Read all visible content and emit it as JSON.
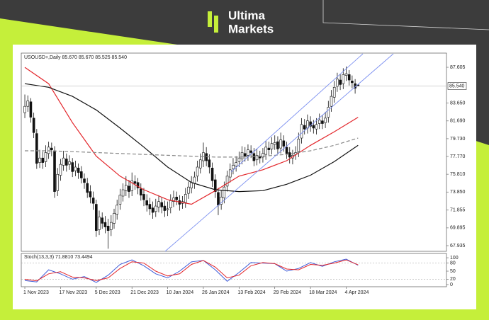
{
  "logo": {
    "line1": "Ultima",
    "line2": "Markets"
  },
  "chart_data": {
    "type": "candlestick",
    "title": "USOUSD+,Daily 85.670 85.670 85.525 85.540",
    "open": [
      82.6,
      83.3,
      83.8,
      82.0,
      80.3,
      77.1,
      77.6,
      77.2,
      78.1,
      78.7,
      78.4,
      74.0,
      75.7,
      76.8,
      77.5,
      76.9,
      77.1,
      76.2,
      76.5,
      76.1,
      75.3,
      74.8,
      73.9,
      73.2,
      72.5,
      69.7,
      71.0,
      70.5,
      70.1,
      69.7,
      70.4,
      71.4,
      72.5,
      73.4,
      74.0,
      74.5,
      74.0,
      75.0,
      74.9,
      74.2,
      73.6,
      72.9,
      72.5,
      72.1,
      71.7,
      72.2,
      72.7,
      72.3,
      71.9,
      72.1,
      72.8,
      73.3,
      72.9,
      72.6,
      72.7,
      73.7,
      74.3,
      74.8,
      75.6,
      76.5,
      77.3,
      78.1,
      77.4,
      76.5,
      75.2,
      73.8,
      72.5,
      73.2,
      74.5,
      75.5,
      76.4,
      76.7,
      77.2,
      77.5,
      78.1,
      77.9,
      78.4,
      78.1,
      77.4,
      77.8,
      77.7,
      78.0,
      78.7,
      78.6,
      79.1,
      79.4,
      78.7,
      79.5,
      78.8,
      78.2,
      77.6,
      78.0,
      78.3,
      79.8,
      81.2,
      80.9,
      81.6,
      81.2,
      80.8,
      81.4,
      81.7,
      81.5,
      82.1,
      83.3,
      84.3,
      85.5,
      86.2,
      85.8,
      86.7,
      86.8,
      86.1,
      85.8,
      85.67
    ],
    "high": [
      84.6,
      84.5,
      84.2,
      82.6,
      80.8,
      78.5,
      78.3,
      79.0,
      79.4,
      79.3,
      78.9,
      76.5,
      77.5,
      78.4,
      78.1,
      77.9,
      77.6,
      77.3,
      77.0,
      76.7,
      75.9,
      75.4,
      74.6,
      73.9,
      73.0,
      71.8,
      71.6,
      71.2,
      70.9,
      71.3,
      72.0,
      73.0,
      74.2,
      74.8,
      75.6,
      75.2,
      76.0,
      75.7,
      75.4,
      74.8,
      74.3,
      73.6,
      73.2,
      72.8,
      73.1,
      73.5,
      73.3,
      72.9,
      72.8,
      73.6,
      74.0,
      73.9,
      73.5,
      73.4,
      74.3,
      75.0,
      75.6,
      76.1,
      77.3,
      78.1,
      79.3,
      78.8,
      78.0,
      77.1,
      75.8,
      74.3,
      74.0,
      75.0,
      76.2,
      77.0,
      77.6,
      77.8,
      78.3,
      78.9,
      78.8,
      79.1,
      79.0,
      78.7,
      78.6,
      78.4,
      78.7,
      79.5,
      79.4,
      79.9,
      80.1,
      80.0,
      80.4,
      80.1,
      79.4,
      78.8,
      78.5,
      78.9,
      80.4,
      82.0,
      81.9,
      82.4,
      82.2,
      81.8,
      82.0,
      82.5,
      82.3,
      82.7,
      83.9,
      85.1,
      86.1,
      87.0,
      86.9,
      87.5,
      87.7,
      87.3,
      86.7,
      86.3,
      85.67
    ],
    "low": [
      82.0,
      82.7,
      81.5,
      79.8,
      76.4,
      76.5,
      76.4,
      76.6,
      77.5,
      77.8,
      73.2,
      73.4,
      75.1,
      76.2,
      76.1,
      76.3,
      75.5,
      75.6,
      75.3,
      74.8,
      74.2,
      73.2,
      72.6,
      71.9,
      68.9,
      69.1,
      69.8,
      69.3,
      67.6,
      69.0,
      69.8,
      70.8,
      71.9,
      72.8,
      73.4,
      73.2,
      73.4,
      74.1,
      73.6,
      72.9,
      72.3,
      71.7,
      71.3,
      70.9,
      71.1,
      71.6,
      71.5,
      71.1,
      71.2,
      71.5,
      72.2,
      72.4,
      71.8,
      72.0,
      72.1,
      73.1,
      73.7,
      74.2,
      75.0,
      75.9,
      76.6,
      76.7,
      75.9,
      74.4,
      73.2,
      71.3,
      71.9,
      72.6,
      73.9,
      74.9,
      75.8,
      76.1,
      76.6,
      76.9,
      77.2,
      77.3,
      77.6,
      76.7,
      76.8,
      77.0,
      77.1,
      77.4,
      77.9,
      78.0,
      78.5,
      78.0,
      78.1,
      78.3,
      77.5,
      77.0,
      76.9,
      77.4,
      77.7,
      79.2,
      80.2,
      80.3,
      80.5,
      80.3,
      80.2,
      80.8,
      80.8,
      80.9,
      81.5,
      82.7,
      83.7,
      84.9,
      85.1,
      85.2,
      86.1,
      85.6,
      85.3,
      84.7,
      85.525
    ],
    "close": [
      83.3,
      83.9,
      82.1,
      80.4,
      77.0,
      77.6,
      77.1,
      78.2,
      78.8,
      78.5,
      73.9,
      75.8,
      76.9,
      77.6,
      76.8,
      77.2,
      76.1,
      76.6,
      76.0,
      75.4,
      74.9,
      73.8,
      73.3,
      72.6,
      69.6,
      71.1,
      70.4,
      70.0,
      69.6,
      70.5,
      71.5,
      72.4,
      73.5,
      74.1,
      74.6,
      73.9,
      75.1,
      74.8,
      74.3,
      73.5,
      73.0,
      72.4,
      72.0,
      71.6,
      72.3,
      72.8,
      72.2,
      71.8,
      72.0,
      72.9,
      73.2,
      73.0,
      72.5,
      72.8,
      73.6,
      74.4,
      74.9,
      75.5,
      76.6,
      77.4,
      78.2,
      77.3,
      76.6,
      75.1,
      73.9,
      72.4,
      73.3,
      74.4,
      75.6,
      76.3,
      76.8,
      77.1,
      77.6,
      78.2,
      77.8,
      78.5,
      78.2,
      77.3,
      77.9,
      77.6,
      78.1,
      78.8,
      78.5,
      79.2,
      79.3,
      78.6,
      79.6,
      78.9,
      78.1,
      77.7,
      77.9,
      78.2,
      79.7,
      81.3,
      80.8,
      81.7,
      81.1,
      80.9,
      81.3,
      81.8,
      81.4,
      82.0,
      83.2,
      84.4,
      85.4,
      86.3,
      85.7,
      86.8,
      86.9,
      86.2,
      85.9,
      85.3,
      85.54
    ],
    "up_color": "#ffffff",
    "down_color": "#111111",
    "xlim": [
      -1.2,
      141.7
    ],
    "xticks": [
      {
        "value": 0,
        "label": "1 Nov 2023"
      },
      {
        "value": 12,
        "label": "17 Nov 2023"
      },
      {
        "value": 24,
        "label": "5 Dec 2023"
      },
      {
        "value": 36,
        "label": "21 Dec 2023"
      },
      {
        "value": 48,
        "label": "10 Jan 2024"
      },
      {
        "value": 60,
        "label": "26 Jan 2024"
      },
      {
        "value": 72,
        "label": "13 Feb 2024"
      },
      {
        "value": 84,
        "label": "29 Feb 2024"
      },
      {
        "value": 96,
        "label": "18 Mar 2024"
      },
      {
        "value": 108,
        "label": "4 Apr 2024"
      }
    ],
    "ylim": [
      67.31,
      89.17
    ],
    "yticks": [
      87.605,
      {
        "value": 83.65,
        "label": "83.650"
      },
      {
        "value": 81.69,
        "label": "81.690"
      },
      {
        "value": 79.73,
        "label": "79.730"
      },
      {
        "value": 77.77,
        "label": "77.770"
      },
      {
        "value": 75.81,
        "label": "75.810"
      },
      {
        "value": 73.85,
        "label": "73.850"
      },
      71.855,
      69.895,
      67.935
    ],
    "last_price": {
      "value": 85.54,
      "label": "85.540"
    },
    "moving_averages": [
      {
        "color": "#e3262b",
        "dash": false,
        "x": [
          0,
          8,
          16,
          24,
          32,
          40,
          48,
          56,
          64,
          72,
          80,
          88,
          96,
          104,
          112
        ],
        "values": [
          87.6,
          85.8,
          81.5,
          77.8,
          75.6,
          74.1,
          73.0,
          72.5,
          74.0,
          75.6,
          76.3,
          77.3,
          79.0,
          80.5,
          82.1
        ]
      },
      {
        "color": "#111111",
        "dash": false,
        "x": [
          0,
          8,
          16,
          24,
          32,
          40,
          48,
          56,
          64,
          72,
          80,
          88,
          96,
          104,
          112
        ],
        "values": [
          85.8,
          85.4,
          84.4,
          82.9,
          80.9,
          78.8,
          76.6,
          74.9,
          74.1,
          73.9,
          74.0,
          74.7,
          75.7,
          77.2,
          79.0
        ]
      },
      {
        "color": "#888888",
        "dash": true,
        "x": [
          0,
          8,
          16,
          24,
          32,
          40,
          48,
          56,
          64,
          72,
          80,
          88,
          96,
          104,
          112
        ],
        "values": [
          78.4,
          78.4,
          78.3,
          78.2,
          78.1,
          78.0,
          77.9,
          77.8,
          77.7,
          77.7,
          77.8,
          78.0,
          78.4,
          79.0,
          79.8
        ]
      }
    ],
    "oscillator": {
      "title": "Stoch(13,3,3) 71.8810 73.4494",
      "ylim": [
        -8,
        116
      ],
      "yticks": [
        100,
        80,
        50,
        20,
        0
      ],
      "levels": [
        80,
        20
      ],
      "x": [
        0,
        4,
        8,
        12,
        16,
        20,
        24,
        28,
        32,
        36,
        40,
        44,
        48,
        52,
        56,
        60,
        64,
        68,
        72,
        76,
        80,
        84,
        88,
        92,
        96,
        100,
        104,
        108,
        112
      ],
      "series": [
        {
          "color": "#3d5bd9",
          "values": [
            15,
            10,
            55,
            40,
            20,
            30,
            8,
            35,
            75,
            92,
            70,
            40,
            25,
            50,
            85,
            90,
            55,
            12,
            45,
            82,
            80,
            78,
            50,
            60,
            82,
            68,
            85,
            95,
            71.881
          ]
        },
        {
          "color": "#e3262b",
          "values": [
            20,
            14,
            40,
            48,
            28,
            25,
            15,
            25,
            60,
            85,
            80,
            50,
            32,
            40,
            75,
            90,
            65,
            25,
            35,
            70,
            82,
            78,
            58,
            55,
            75,
            72,
            80,
            92,
            73.4494
          ]
        }
      ]
    }
  }
}
